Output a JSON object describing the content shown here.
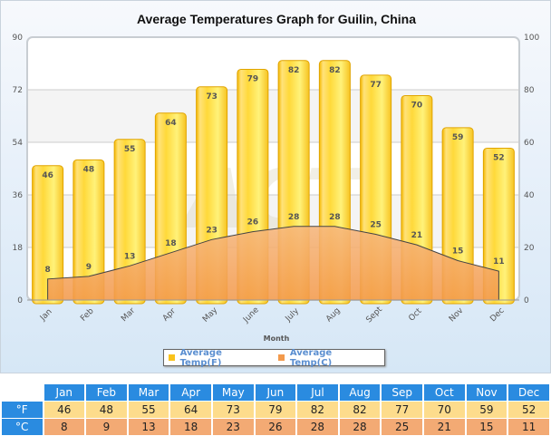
{
  "chart": {
    "title": "Average Temperatures Graph for Guilin, China",
    "xlabel": "Month",
    "legend": [
      {
        "label": "Average Temp(F)",
        "color": "#f9c21b"
      },
      {
        "label": "Average Temp(C)",
        "color": "#f39a4c"
      }
    ]
  },
  "table": {
    "months": [
      "Jan",
      "Feb",
      "Mar",
      "Apr",
      "May",
      "Jun",
      "Jul",
      "Aug",
      "Sep",
      "Oct",
      "Nov",
      "Dec"
    ],
    "row_f_label": "°F",
    "row_c_label": "°C",
    "f": [
      "46",
      "48",
      "55",
      "64",
      "73",
      "79",
      "82",
      "82",
      "77",
      "70",
      "59",
      "52"
    ],
    "c": [
      "8",
      "9",
      "13",
      "18",
      "23",
      "26",
      "28",
      "28",
      "25",
      "21",
      "15",
      "11"
    ]
  },
  "chart_data": {
    "type": "bar",
    "title": "Average Temperatures Graph for Guilin, China",
    "xlabel": "Month",
    "ylabel": "",
    "categories": [
      "Jan",
      "Feb",
      "Mar",
      "Apr",
      "May",
      "June",
      "July",
      "Aug",
      "Sept",
      "Oct",
      "Nov",
      "Dec"
    ],
    "series": [
      {
        "name": "Average Temp(F)",
        "type": "bar",
        "axis": "left",
        "values": [
          46,
          48,
          55,
          64,
          73,
          79,
          82,
          82,
          77,
          70,
          59,
          52
        ],
        "color": "#f9c21b"
      },
      {
        "name": "Average Temp(C)",
        "type": "area",
        "axis": "right",
        "values": [
          8,
          9,
          13,
          18,
          23,
          26,
          28,
          28,
          25,
          21,
          15,
          11
        ],
        "color": "#f39a4c"
      }
    ],
    "ylim_left": [
      0,
      90
    ],
    "yticks_left": [
      0,
      18,
      36,
      54,
      72,
      90
    ],
    "ylim_right": [
      0,
      100
    ],
    "yticks_right": [
      0,
      20,
      40,
      60,
      80,
      100
    ],
    "grid": true,
    "legend_position": "bottom",
    "watermark": "ACT"
  }
}
